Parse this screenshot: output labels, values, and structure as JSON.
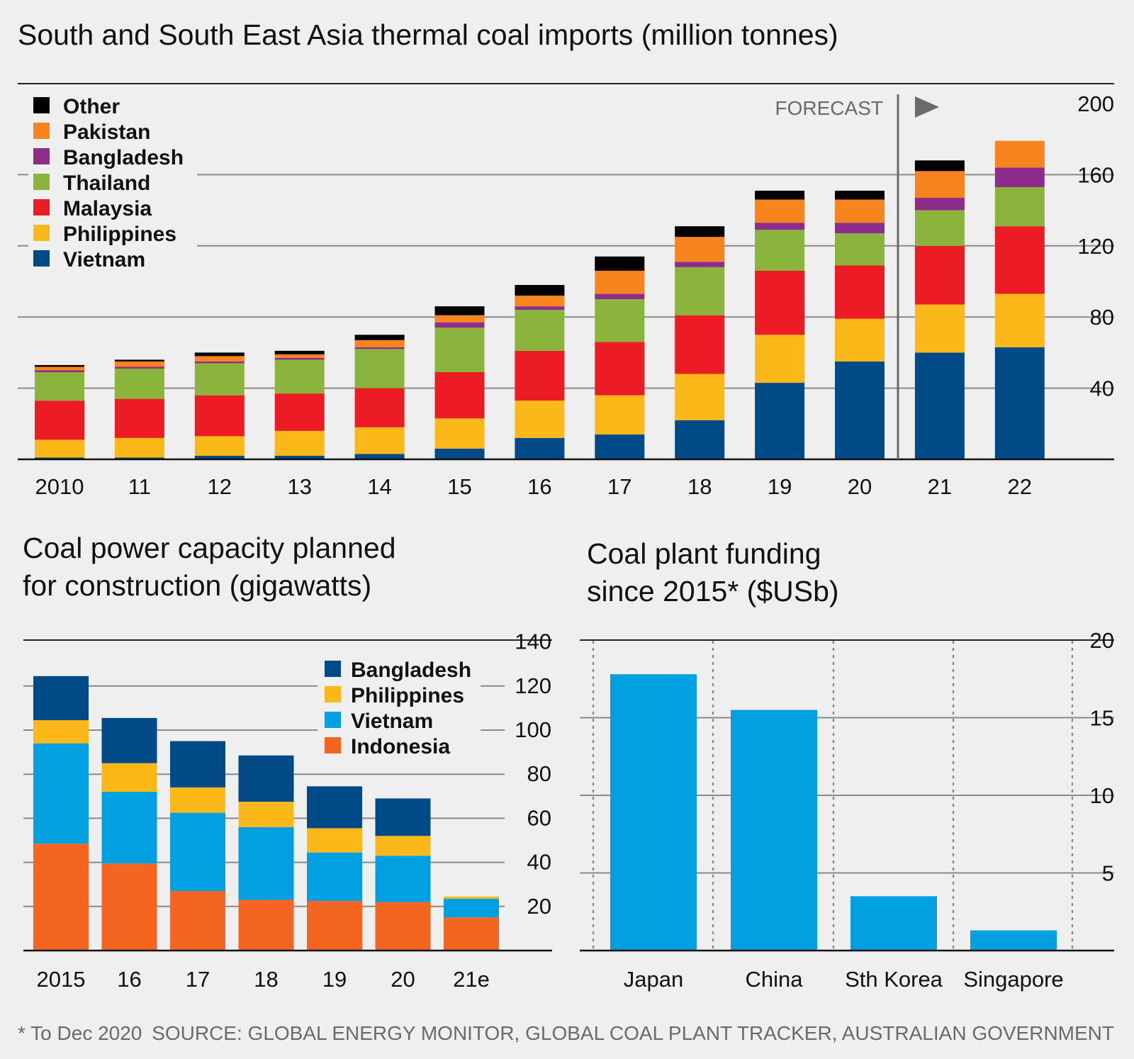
{
  "footnote": "* To Dec 2020",
  "source": "SOURCE: GLOBAL ENERGY MONITOR, GLOBAL COAL PLANT TRACKER, AUSTRALIAN GOVERNMENT",
  "colors": {
    "background": "#efefef",
    "Vietnam": "#004b87",
    "Philippines": "#fbb818",
    "Malaysia": "#ec1c24",
    "Thailand": "#8bb43c",
    "Bangladesh": "#8e2c8c",
    "Pakistan": "#f7841d",
    "Other": "#000000",
    "capBangladesh": "#004b87",
    "capPhilippines": "#fbb818",
    "capVietnam": "#00a0e1",
    "capIndonesia": "#f36521",
    "funding": "#00a0e1"
  },
  "chart_data": [
    {
      "type": "bar",
      "stacked": true,
      "title": "South and South East Asia thermal coal imports (million tonnes)",
      "categories": [
        "2010",
        "11",
        "12",
        "13",
        "14",
        "15",
        "16",
        "17",
        "18",
        "19",
        "20",
        "21",
        "22"
      ],
      "forecast_label": "FORECAST",
      "forecast_from": "21",
      "ylim": [
        0,
        200
      ],
      "yticks": [
        40,
        80,
        120,
        160,
        200
      ],
      "legend": [
        "Other",
        "Pakistan",
        "Bangladesh",
        "Thailand",
        "Malaysia",
        "Philippines",
        "Vietnam"
      ],
      "series": [
        {
          "name": "Vietnam",
          "values": [
            1,
            1,
            2,
            2,
            3,
            6,
            12,
            14,
            22,
            43,
            55,
            60,
            63
          ]
        },
        {
          "name": "Philippines",
          "values": [
            10,
            11,
            11,
            14,
            15,
            17,
            21,
            22,
            26,
            27,
            24,
            27,
            30
          ]
        },
        {
          "name": "Malaysia",
          "values": [
            22,
            22,
            23,
            21,
            22,
            26,
            28,
            30,
            33,
            36,
            30,
            33,
            38
          ]
        },
        {
          "name": "Thailand",
          "values": [
            16,
            17,
            18,
            19,
            22,
            25,
            23,
            24,
            27,
            23,
            18,
            20,
            22
          ]
        },
        {
          "name": "Bangladesh",
          "values": [
            1,
            1,
            1,
            1,
            1,
            3,
            2,
            3,
            3,
            4,
            6,
            7,
            11
          ]
        },
        {
          "name": "Pakistan",
          "values": [
            2,
            3,
            3,
            2,
            4,
            4,
            6,
            13,
            14,
            13,
            13,
            15,
            15
          ]
        },
        {
          "name": "Other",
          "values": [
            1,
            1,
            2,
            2,
            3,
            5,
            6,
            8,
            6,
            5,
            5,
            6,
            0
          ]
        }
      ]
    },
    {
      "type": "bar",
      "stacked": true,
      "title_lines": [
        "Coal power capacity planned",
        "for construction (gigawatts)"
      ],
      "categories": [
        "2015",
        "16",
        "17",
        "18",
        "19",
        "20",
        "21e"
      ],
      "ylim": [
        0,
        140
      ],
      "yticks": [
        20,
        40,
        60,
        80,
        100,
        120,
        140
      ],
      "legend": [
        "Bangladesh",
        "Philippines",
        "Vietnam",
        "Indonesia"
      ],
      "series": [
        {
          "name": "Indonesia",
          "values": [
            48.5,
            39.5,
            27,
            23,
            22.5,
            22,
            15
          ]
        },
        {
          "name": "Vietnam",
          "values": [
            45.5,
            32.5,
            35.5,
            33,
            22,
            21,
            8.5
          ]
        },
        {
          "name": "Philippines",
          "values": [
            10.5,
            13,
            11.5,
            11.5,
            11,
            9,
            1
          ]
        },
        {
          "name": "Bangladesh",
          "values": [
            20,
            20.5,
            21,
            21,
            19,
            17,
            0
          ]
        }
      ]
    },
    {
      "type": "bar",
      "title_lines": [
        "Coal plant funding",
        "since 2015* ($USb)"
      ],
      "categories": [
        "Japan",
        "China",
        "Sth Korea",
        "Singapore"
      ],
      "values": [
        17.8,
        15.5,
        3.5,
        1.3
      ],
      "ylim": [
        0,
        20
      ],
      "yticks": [
        5,
        10,
        15,
        20
      ]
    }
  ]
}
